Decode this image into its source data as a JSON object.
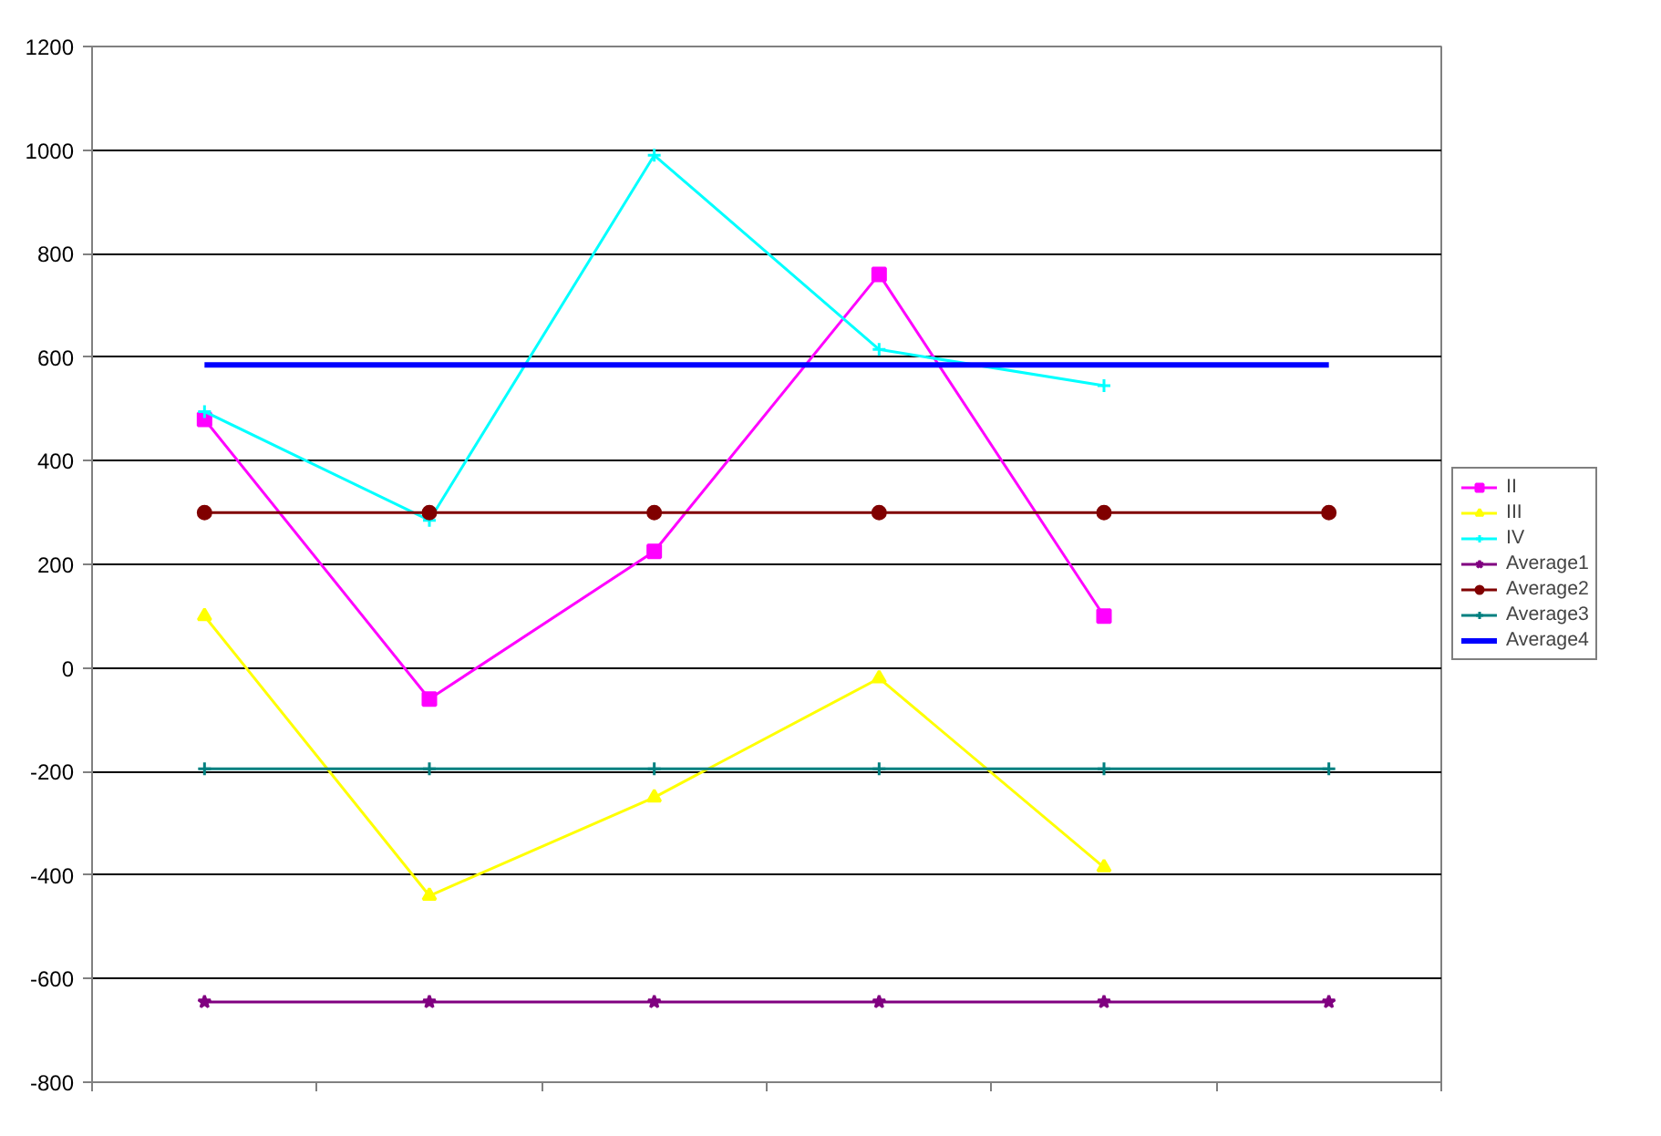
{
  "chart_data": {
    "type": "line",
    "categories": [
      null,
      null,
      null,
      null,
      null,
      null
    ],
    "ylim": [
      -800,
      1200
    ],
    "yticks": [
      -800,
      -600,
      -400,
      -200,
      0,
      200,
      400,
      600,
      800,
      1000,
      1200
    ],
    "grid": "y",
    "legend": "right",
    "tick_labels": "y",
    "series": [
      {
        "name": "II",
        "color": "#ff00ff",
        "marker": "square",
        "values": [
          480,
          -60,
          225,
          760,
          100,
          null
        ]
      },
      {
        "name": "III",
        "color": "#ffff00",
        "marker": "triangle",
        "values": [
          100,
          -440,
          -250,
          -20,
          -385,
          null
        ]
      },
      {
        "name": "IV",
        "color": "#00ffff",
        "marker": "cross",
        "values": [
          495,
          285,
          990,
          615,
          545,
          null
        ]
      },
      {
        "name": "Average1",
        "color": "#800080",
        "marker": "star",
        "values": [
          -645,
          -645,
          -645,
          -645,
          -645,
          -645
        ]
      },
      {
        "name": "Average2",
        "color": "#800000",
        "marker": "circle",
        "values": [
          300,
          300,
          300,
          300,
          300,
          300
        ]
      },
      {
        "name": "Average3",
        "color": "#008080",
        "marker": "cross",
        "values": [
          -195,
          -195,
          -195,
          -195,
          -195,
          -195
        ]
      },
      {
        "name": "Average4",
        "color": "#0000ff",
        "marker": "none",
        "values": [
          585,
          585,
          585,
          585,
          585,
          585
        ]
      }
    ]
  }
}
